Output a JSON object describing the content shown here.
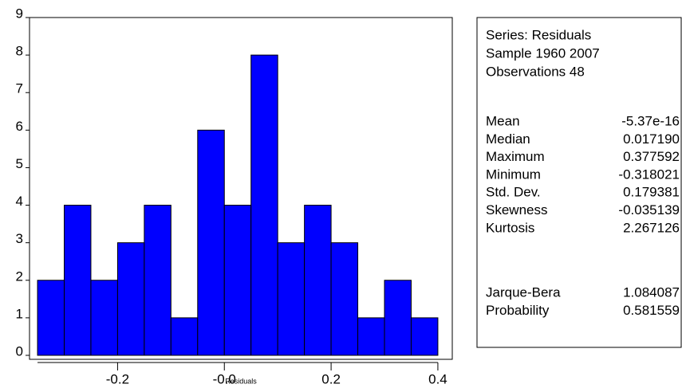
{
  "chart_data": {
    "type": "histogram",
    "xlabel": "Residuals",
    "color": "#0000ff",
    "bins": [
      -0.35,
      -0.3,
      -0.25,
      -0.2,
      -0.15,
      -0.1,
      -0.05,
      0.0,
      0.05,
      0.1,
      0.15,
      0.2,
      0.25,
      0.3,
      0.35,
      0.4
    ],
    "values": [
      2,
      4,
      2,
      3,
      4,
      1,
      6,
      4,
      8,
      3,
      4,
      3,
      1,
      2,
      1
    ],
    "xlim": [
      -0.365,
      0.427
    ],
    "ylim": [
      0,
      9
    ],
    "xticks": [
      -0.2,
      {
        "value": 0,
        "label": "-0.0"
      },
      0.2,
      0.4
    ],
    "yticks": [
      0,
      1,
      2,
      3,
      4,
      5,
      6,
      7,
      8,
      9
    ]
  },
  "stats_box": {
    "header": [
      "Series: Residuals",
      "Sample 1960 2007",
      "Observations 48"
    ],
    "rows": [
      [
        "Mean",
        "-5.37e-16"
      ],
      [
        "Median",
        "0.017190"
      ],
      [
        "Maximum",
        "0.377592"
      ],
      [
        "Minimum",
        "-0.318021"
      ],
      [
        "Std. Dev.",
        "0.179381"
      ],
      [
        "Skewness",
        "-0.035139"
      ],
      [
        "Kurtosis",
        "2.267126"
      ]
    ],
    "tests": [
      [
        "Jarque-Bera",
        "1.084087"
      ],
      [
        "Probability",
        "0.581559"
      ]
    ]
  }
}
